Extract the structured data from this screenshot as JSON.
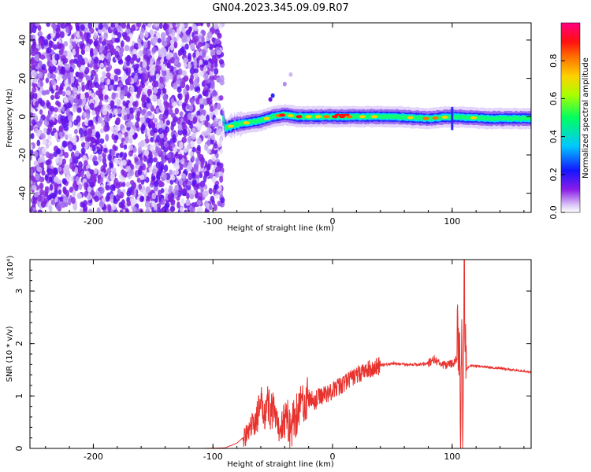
{
  "figure_title": "GN04.2023.345.09.09.R07",
  "chart_data": [
    {
      "type": "heatmap",
      "xlabel": "Height of straight line (km)",
      "ylabel": "Frequency (Hz)",
      "xlim": [
        -253,
        166
      ],
      "ylim": [
        -50,
        49
      ],
      "x_ticks": [
        -200,
        -100,
        0,
        100
      ],
      "y_ticks": [
        -40,
        -20,
        0,
        20,
        40
      ],
      "colorbar": {
        "label": "Normalized spectral amplitude",
        "range": [
          0.0,
          1.0
        ],
        "ticks": [
          0.0,
          0.2,
          0.4,
          0.6,
          0.8
        ],
        "colormap": "rainbow (magenta-violet-blue-cyan-green-yellow-orange-red)"
      },
      "regions": [
        {
          "description": "broadband noise",
          "x_range": [
            -253,
            -92
          ],
          "y_range": [
            -50,
            49
          ],
          "amplitude": "low (violet)"
        },
        {
          "description": "signal ridge",
          "x_range": [
            -92,
            166
          ],
          "center_frequency_hz": [
            [
              -90,
              -6
            ],
            [
              -80,
              -4
            ],
            [
              -70,
              -3
            ],
            [
              -60,
              -2
            ],
            [
              -50,
              0
            ],
            [
              -40,
              1
            ],
            [
              -30,
              0
            ],
            [
              -20,
              0
            ],
            [
              -10,
              0
            ],
            [
              0,
              0
            ],
            [
              20,
              0
            ],
            [
              50,
              0
            ],
            [
              80,
              -1
            ],
            [
              100,
              0
            ],
            [
              130,
              -1
            ],
            [
              166,
              -1
            ]
          ],
          "peak_amplitude": "high near x=0 to 20 (red)"
        }
      ]
    },
    {
      "type": "line",
      "xlabel": "Height of straight line (km)",
      "ylabel": "SNR (10 * v/v)",
      "y_multiplier": "(x10⁴)",
      "xlim": [
        -253,
        166
      ],
      "ylim": [
        0,
        3.6
      ],
      "x_ticks": [
        -200,
        -100,
        0,
        100
      ],
      "y_ticks": [
        0,
        1,
        2,
        3
      ],
      "line_color": "#e8322e",
      "x": [
        -253,
        -200,
        -150,
        -110,
        -90,
        -80,
        -70,
        -60,
        -55,
        -50,
        -45,
        -40,
        -35,
        -30,
        -25,
        -20,
        -15,
        -10,
        -5,
        0,
        10,
        20,
        30,
        40,
        50,
        60,
        70,
        80,
        85,
        90,
        95,
        100,
        104,
        106,
        107,
        108,
        109,
        110,
        111,
        112,
        115,
        130,
        150,
        166
      ],
      "y": [
        0.0,
        0.0,
        0.0,
        0.0,
        0.01,
        0.1,
        0.3,
        0.75,
        0.85,
        0.7,
        0.35,
        0.6,
        0.4,
        0.7,
        0.9,
        0.95,
        0.9,
        1.0,
        1.05,
        1.1,
        1.25,
        1.4,
        1.5,
        1.58,
        1.62,
        1.6,
        1.6,
        1.62,
        1.7,
        1.6,
        1.58,
        1.62,
        1.7,
        2.3,
        0.5,
        2.0,
        0.3,
        3.55,
        1.6,
        1.5,
        1.58,
        1.55,
        1.5,
        1.45
      ]
    }
  ]
}
